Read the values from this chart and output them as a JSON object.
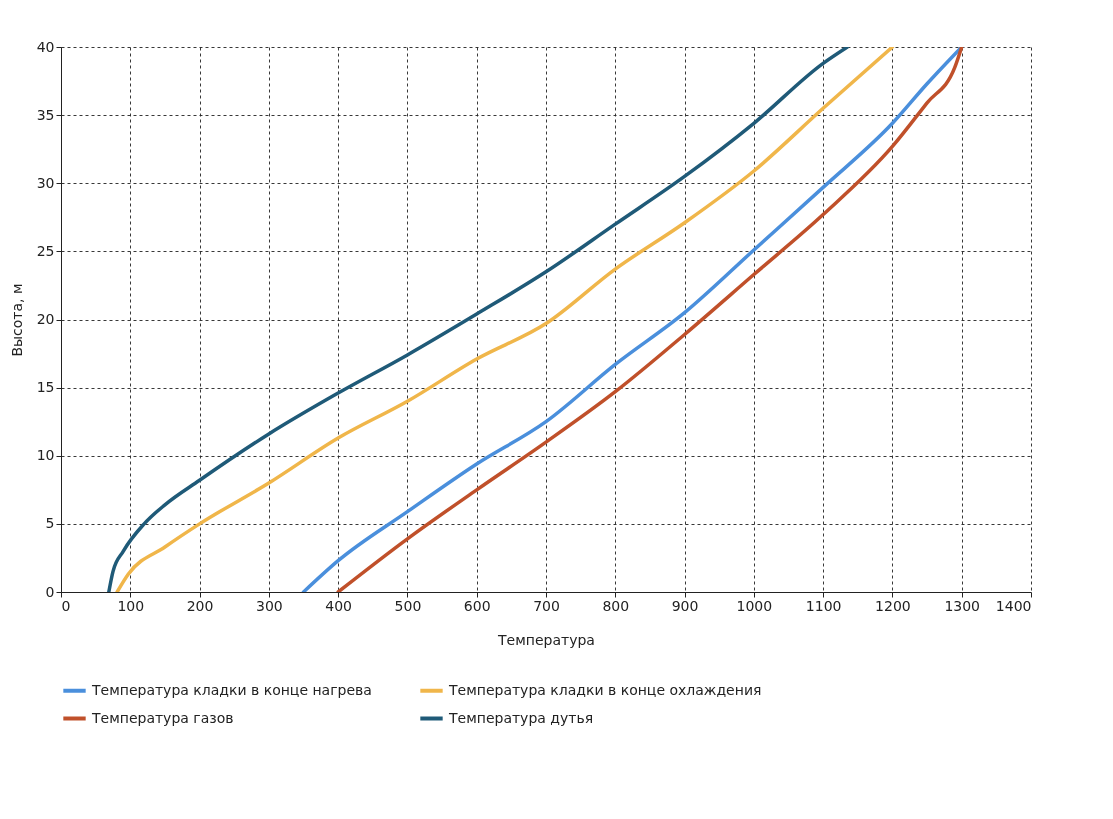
{
  "chart_data": {
    "type": "line",
    "xlabel": "Температура",
    "ylabel": "Высота, м",
    "xlim": [
      0,
      1400
    ],
    "ylim": [
      0,
      40
    ],
    "xticks": [
      0,
      100,
      200,
      300,
      400,
      500,
      600,
      700,
      800,
      900,
      1000,
      1100,
      1200,
      1300,
      1400
    ],
    "yticks": [
      0,
      5,
      10,
      15,
      20,
      25,
      30,
      35,
      40
    ],
    "grid": true,
    "legend": "bottom",
    "line_style": "solid",
    "series": [
      {
        "name": "Температура кладки в конце нагрева",
        "color": "#4a8fdc",
        "x": [
          350,
          400,
          500,
          600,
          700,
          800,
          900,
          1000,
          1100,
          1200,
          1250,
          1300
        ],
        "values": [
          0,
          2.3,
          5.9,
          9.4,
          12.5,
          16.7,
          20.5,
          25.1,
          29.7,
          34.4,
          37.3,
          40
        ]
      },
      {
        "name": "Температура кладки в конце охлаждения",
        "color": "#f0b64a",
        "x": [
          81,
          97,
          150,
          200,
          300,
          400,
          500,
          600,
          700,
          800,
          900,
          1000,
          1100,
          1200
        ],
        "values": [
          0,
          1.3,
          3.3,
          5,
          8,
          11.3,
          14,
          17.1,
          19.7,
          23.7,
          27.1,
          30.9,
          35.5,
          40
        ]
      },
      {
        "name": "Температура газов",
        "color": "#c0502a",
        "x": [
          400,
          500,
          600,
          700,
          800,
          900,
          1000,
          1100,
          1200,
          1250,
          1290,
          1300
        ],
        "values": [
          0,
          3.9,
          7.5,
          11,
          14.7,
          18.9,
          23.3,
          27.7,
          32.7,
          35.9,
          38.5,
          40
        ]
      },
      {
        "name": "Температура дутья",
        "color": "#1f5a78",
        "x": [
          69,
          75,
          90,
          120,
          150,
          200,
          300,
          400,
          500,
          600,
          700,
          800,
          900,
          1000,
          1100,
          1135
        ],
        "values": [
          0,
          1.5,
          3,
          5,
          6.4,
          8.2,
          11.6,
          14.6,
          17.4,
          20.4,
          23.5,
          27,
          30.5,
          34.4,
          38.8,
          40
        ]
      }
    ]
  }
}
